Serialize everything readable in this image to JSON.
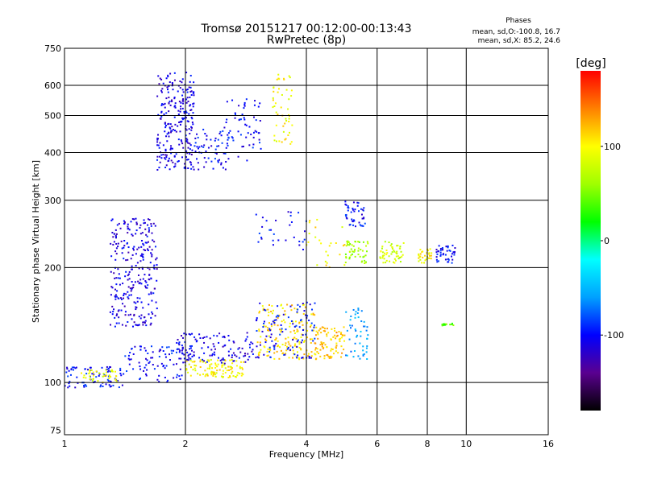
{
  "chart_data": {
    "type": "scatter",
    "title": "Tromsø 20151217 00:12:00-00:13:43",
    "subtitle": "RwPretec (8p)",
    "xlabel": "Frequency [MHz]",
    "ylabel": "Stationary phase Virtual Height [km]",
    "x_scale": "log",
    "y_scale": "log",
    "xlim": [
      1,
      16
    ],
    "ylim": [
      73,
      750
    ],
    "x_ticks": [
      1,
      2,
      4,
      6,
      8,
      10,
      16
    ],
    "y_ticks": [
      75,
      100,
      200,
      300,
      400,
      500,
      600,
      750
    ],
    "grid_x": [
      2,
      4,
      6,
      8,
      10
    ],
    "grid_y": [
      100,
      200,
      300,
      400,
      500,
      600
    ],
    "grid": true,
    "stats": {
      "title": "Phases",
      "line1": "mean, sd,O:-100.8, 16.7",
      "line2": "mean, sd,X:  85.2, 24.6"
    },
    "colorbar": {
      "label": "[deg]",
      "ticks": [
        100,
        0,
        -100
      ],
      "range": [
        -180,
        180
      ],
      "colors": [
        "#000000",
        "#5a0090",
        "#0000ff",
        "#00a0ff",
        "#00ffff",
        "#00ff00",
        "#a0ff00",
        "#ffff00",
        "#ff8000",
        "#ff0000"
      ]
    },
    "series": [
      {
        "x_range": [
          1.7,
          2.1
        ],
        "y_range": [
          360,
          650
        ],
        "phase": -110,
        "n": 250
      },
      {
        "x_range": [
          2.1,
          2.6
        ],
        "y_range": [
          360,
          460
        ],
        "phase": -100,
        "n": 60
      },
      {
        "x_range": [
          2.5,
          3.1
        ],
        "y_range": [
          380,
          560
        ],
        "phase": -100,
        "n": 60
      },
      {
        "x_range": [
          3.3,
          3.7
        ],
        "y_range": [
          420,
          650
        ],
        "phase": 100,
        "n": 50
      },
      {
        "x_range": [
          1.3,
          1.7
        ],
        "y_range": [
          140,
          270
        ],
        "phase": -110,
        "n": 280
      },
      {
        "x_range": [
          1.0,
          1.4
        ],
        "y_range": [
          97,
          110
        ],
        "phase": -100,
        "n": 80
      },
      {
        "x_range": [
          1.1,
          1.35
        ],
        "y_range": [
          100,
          108
        ],
        "phase": 90,
        "n": 40
      },
      {
        "x_range": [
          1.4,
          2.0
        ],
        "y_range": [
          100,
          125
        ],
        "phase": -100,
        "n": 90
      },
      {
        "x_range": [
          2.0,
          2.8
        ],
        "y_range": [
          103,
          115
        ],
        "phase": 100,
        "n": 110
      },
      {
        "x_range": [
          1.9,
          3.0
        ],
        "y_range": [
          112,
          135
        ],
        "phase": -110,
        "n": 120
      },
      {
        "x_range": [
          3.0,
          4.2
        ],
        "y_range": [
          115,
          160
        ],
        "phase": 110,
        "n": 160
      },
      {
        "x_range": [
          3.0,
          4.2
        ],
        "y_range": [
          115,
          165
        ],
        "phase": -100,
        "n": 100
      },
      {
        "x_range": [
          4.2,
          5.0
        ],
        "y_range": [
          115,
          140
        ],
        "phase": 120,
        "n": 90
      },
      {
        "x_range": [
          5.0,
          5.7
        ],
        "y_range": [
          115,
          160
        ],
        "phase": -60,
        "n": 50
      },
      {
        "x_range": [
          5.0,
          5.6
        ],
        "y_range": [
          255,
          300
        ],
        "phase": -100,
        "n": 45
      },
      {
        "x_range": [
          5.0,
          5.7
        ],
        "y_range": [
          205,
          235
        ],
        "phase": 60,
        "n": 50
      },
      {
        "x_range": [
          6.1,
          7.0
        ],
        "y_range": [
          205,
          235
        ],
        "phase": 80,
        "n": 55
      },
      {
        "x_range": [
          7.6,
          8.2
        ],
        "y_range": [
          205,
          225
        ],
        "phase": 100,
        "n": 30
      },
      {
        "x_range": [
          8.4,
          9.4
        ],
        "y_range": [
          205,
          230
        ],
        "phase": -100,
        "n": 45
      },
      {
        "x_range": [
          8.7,
          9.3
        ],
        "y_range": [
          141,
          143
        ],
        "phase": 40,
        "n": 15
      },
      {
        "x_range": [
          3.0,
          4.0
        ],
        "y_range": [
          220,
          280
        ],
        "phase": -100,
        "n": 30
      },
      {
        "x_range": [
          4.0,
          5.0
        ],
        "y_range": [
          200,
          270
        ],
        "phase": 100,
        "n": 25
      }
    ]
  }
}
